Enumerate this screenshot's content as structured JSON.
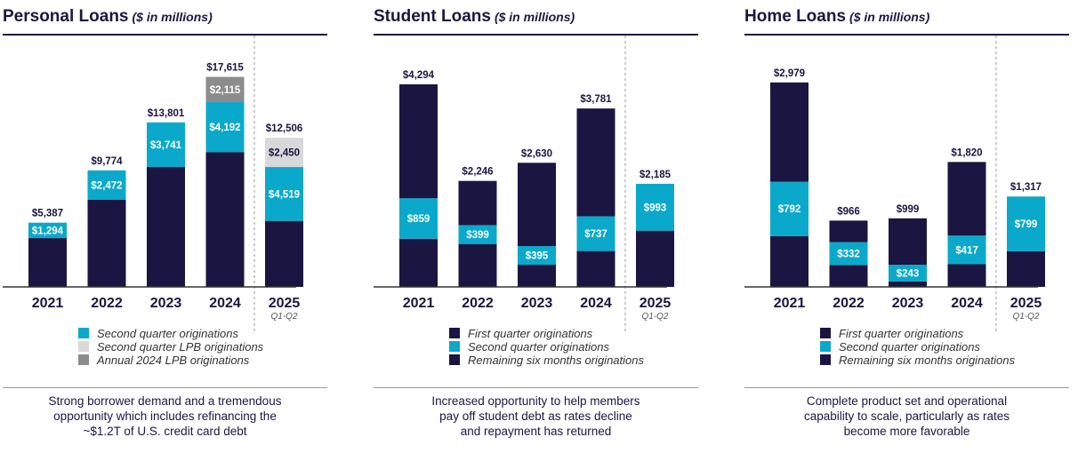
{
  "colors": {
    "navy": "#1b1541",
    "teal": "#0aa9cb",
    "light_gray": "#d9d9d9",
    "mid_gray": "#8c8c8c",
    "divider": "#9a9a9a"
  },
  "chart_data": [
    {
      "type": "bar",
      "stacked": true,
      "title": "Personal Loans",
      "subtitle": "($ in millions)",
      "categories": [
        "2021",
        "2022",
        "2023",
        "2024",
        "2025"
      ],
      "category_sublabels": [
        "",
        "",
        "",
        "",
        "Q1-Q2"
      ],
      "totals": [
        5387,
        9774,
        13801,
        17615,
        12506
      ],
      "total_labels": [
        "$5,387",
        "$9,774",
        "$13,801",
        "$17,615",
        "$12,506"
      ],
      "ylim": [
        0,
        19000
      ],
      "grid": false,
      "series": [
        {
          "name": "",
          "color": "#1b1541",
          "values": [
            4093,
            7302,
            10060,
            11308,
            5537
          ],
          "labels": [
            "",
            "",
            "",
            "",
            ""
          ]
        },
        {
          "name": "Second quarter originations",
          "color": "#0aa9cb",
          "values": [
            1294,
            2472,
            3741,
            4192,
            4519
          ],
          "labels": [
            "$1,294",
            "$2,472",
            "$3,741",
            "$4,192",
            "$4,519"
          ]
        },
        {
          "name": "Second quarter LPB originations",
          "color": "#d9d9d9",
          "values": [
            0,
            0,
            0,
            0,
            2450
          ],
          "labels": [
            "",
            "",
            "",
            "",
            "$2,450"
          ]
        },
        {
          "name": "Annual 2024 LPB originations",
          "color": "#8c8c8c",
          "values": [
            0,
            0,
            0,
            2115,
            0
          ],
          "labels": [
            "",
            "",
            "",
            "$2,115",
            ""
          ]
        }
      ],
      "legend": [
        {
          "label": "Second quarter originations",
          "color": "#0aa9cb"
        },
        {
          "label": "Second quarter LPB originations",
          "color": "#d9d9d9"
        },
        {
          "label": "Annual 2024 LPB originations",
          "color": "#8c8c8c"
        }
      ],
      "caption": [
        "Strong borrower demand and a tremendous",
        "opportunity which includes refinancing the",
        "~$1.2T of U.S. credit card debt"
      ]
    },
    {
      "type": "bar",
      "stacked": true,
      "title": "Student Loans",
      "subtitle": "($ in millions)",
      "categories": [
        "2021",
        "2022",
        "2023",
        "2024",
        "2025"
      ],
      "category_sublabels": [
        "",
        "",
        "",
        "",
        "Q1-Q2"
      ],
      "totals": [
        4294,
        2246,
        2630,
        3781,
        2185
      ],
      "total_labels": [
        "$4,294",
        "$2,246",
        "$2,630",
        "$3,781",
        "$2,185"
      ],
      "ylim": [
        0,
        4800
      ],
      "grid": false,
      "series": [
        {
          "name": "First quarter originations",
          "color": "#1b1541",
          "values": [
            1020,
            910,
            470,
            760,
            1192
          ],
          "labels": [
            "",
            "",
            "",
            "",
            ""
          ]
        },
        {
          "name": "Second quarter originations",
          "color": "#0aa9cb",
          "values": [
            859,
            399,
            395,
            737,
            993
          ],
          "labels": [
            "$859",
            "$399",
            "$395",
            "$737",
            "$993"
          ]
        },
        {
          "name": "Remaining six months originations",
          "color": "#1b1541",
          "values": [
            2415,
            937,
            1765,
            2284,
            0
          ],
          "labels": [
            "",
            "",
            "",
            "",
            ""
          ]
        }
      ],
      "legend": [
        {
          "label": "First quarter originations",
          "color": "#1b1541"
        },
        {
          "label": "Second quarter originations",
          "color": "#0aa9cb"
        },
        {
          "label": "Remaining six months originations",
          "color": "#1b1541"
        }
      ],
      "caption": [
        "Increased opportunity to help members",
        "pay off student debt as rates decline",
        "and repayment has returned"
      ]
    },
    {
      "type": "bar",
      "stacked": true,
      "title": "Home Loans",
      "subtitle": "($ in millions)",
      "categories": [
        "2021",
        "2022",
        "2023",
        "2024",
        "2025"
      ],
      "category_sublabels": [
        "",
        "",
        "",
        "",
        "Q1-Q2"
      ],
      "totals": [
        2979,
        966,
        999,
        1820,
        1317
      ],
      "total_labels": [
        "$2,979",
        "$966",
        "$999",
        "$1,820",
        "$1,317"
      ],
      "ylim": [
        0,
        3300
      ],
      "grid": false,
      "series": [
        {
          "name": "First quarter originations",
          "color": "#1b1541",
          "values": [
            740,
            320,
            80,
            330,
            518
          ],
          "labels": [
            "",
            "",
            "",
            "",
            ""
          ]
        },
        {
          "name": "Second quarter originations",
          "color": "#0aa9cb",
          "values": [
            792,
            332,
            243,
            417,
            799
          ],
          "labels": [
            "$792",
            "$332",
            "$243",
            "$417",
            "$799"
          ]
        },
        {
          "name": "Remaining six months originations",
          "color": "#1b1541",
          "values": [
            1447,
            314,
            676,
            1073,
            0
          ],
          "labels": [
            "",
            "",
            "",
            "",
            ""
          ]
        }
      ],
      "legend": [
        {
          "label": "First quarter originations",
          "color": "#1b1541"
        },
        {
          "label": "Second quarter originations",
          "color": "#0aa9cb"
        },
        {
          "label": "Remaining six months originations",
          "color": "#1b1541"
        }
      ],
      "caption": [
        "Complete product set and operational",
        "capability to scale, particularly as rates",
        "become more favorable"
      ]
    }
  ]
}
